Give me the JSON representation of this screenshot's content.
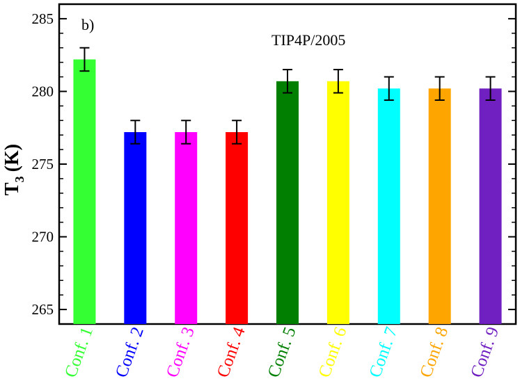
{
  "chart_data": {
    "type": "bar",
    "panel_label": "b)",
    "annotation": "TIP4P/2005",
    "title": "",
    "xlabel": "",
    "ylabel_main": "T",
    "ylabel_sub": "3",
    "ylabel_unit": "(K)",
    "ylim": [
      264,
      286
    ],
    "yticks": [
      265,
      270,
      275,
      280,
      285
    ],
    "categories": [
      "Conf. 1",
      "Conf. 2",
      "Conf. 3",
      "Conf. 4",
      "Conf. 5",
      "Conf. 6",
      "Conf. 7",
      "Conf. 8",
      "Conf. 9"
    ],
    "values": [
      282.2,
      277.2,
      277.2,
      277.2,
      280.7,
      280.7,
      280.2,
      280.2,
      280.2
    ],
    "errors": [
      0.8,
      0.8,
      0.8,
      0.8,
      0.8,
      0.8,
      0.8,
      0.8,
      0.8
    ],
    "colors": [
      "#33ff33",
      "#0000ff",
      "#ff00ff",
      "#ff0000",
      "#007f00",
      "#ffff00",
      "#00ffff",
      "#ffa500",
      "#7020c0"
    ],
    "grid": false,
    "legend": "none"
  }
}
